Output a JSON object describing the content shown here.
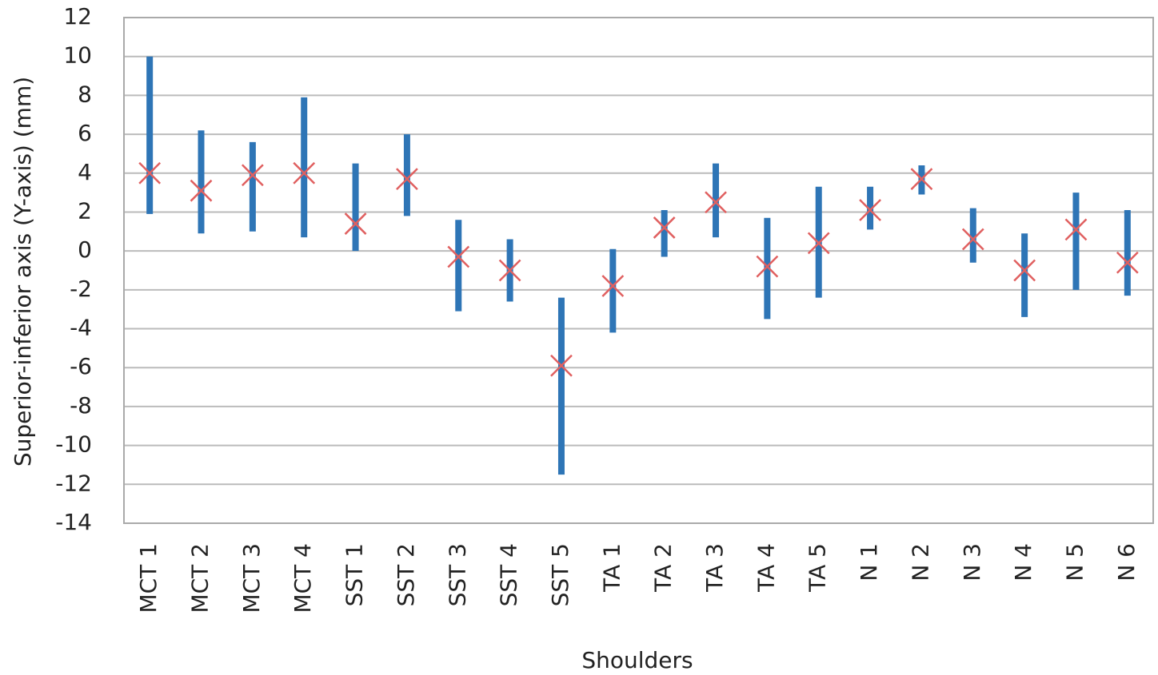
{
  "chart_data": {
    "type": "range",
    "x_label": "Shoulders",
    "y_label": "Superior-inferior axis (Y-axis) (mm)",
    "categories": [
      "MCT 1",
      "MCT 2",
      "MCT 3",
      "MCT 4",
      "SST 1",
      "SST 2",
      "SST 3",
      "SST 4",
      "SST 5",
      "TA 1",
      "TA 2",
      "TA 3",
      "TA 4",
      "TA 5",
      "N 1",
      "N 2",
      "N 3",
      "N 4",
      "N 5",
      "N 6"
    ],
    "low": [
      1.9,
      0.9,
      1.0,
      0.7,
      0.0,
      1.8,
      -3.1,
      -2.6,
      -11.5,
      -4.2,
      -0.3,
      0.7,
      -3.5,
      -2.4,
      1.1,
      2.9,
      -0.6,
      -3.4,
      -2.0,
      -2.3
    ],
    "high": [
      10.0,
      6.2,
      5.6,
      7.9,
      4.5,
      6.0,
      1.6,
      0.6,
      -2.4,
      0.1,
      2.1,
      4.5,
      1.7,
      3.3,
      3.3,
      4.4,
      2.2,
      0.9,
      3.0,
      2.1
    ],
    "values": [
      4.0,
      3.1,
      3.9,
      4.0,
      1.4,
      3.7,
      -0.3,
      -1.0,
      -5.9,
      -1.8,
      1.2,
      2.5,
      -0.8,
      0.4,
      2.1,
      3.7,
      0.6,
      -1.0,
      1.1,
      -0.6
    ],
    "bar_color": "#2e75b6",
    "marker_color": "#e06060",
    "ylim": [
      -14,
      12
    ],
    "yticks": [
      -14,
      -12,
      -10,
      -8,
      -6,
      -4,
      -2,
      0,
      2,
      4,
      6,
      8,
      10,
      12
    ],
    "grid": true
  }
}
